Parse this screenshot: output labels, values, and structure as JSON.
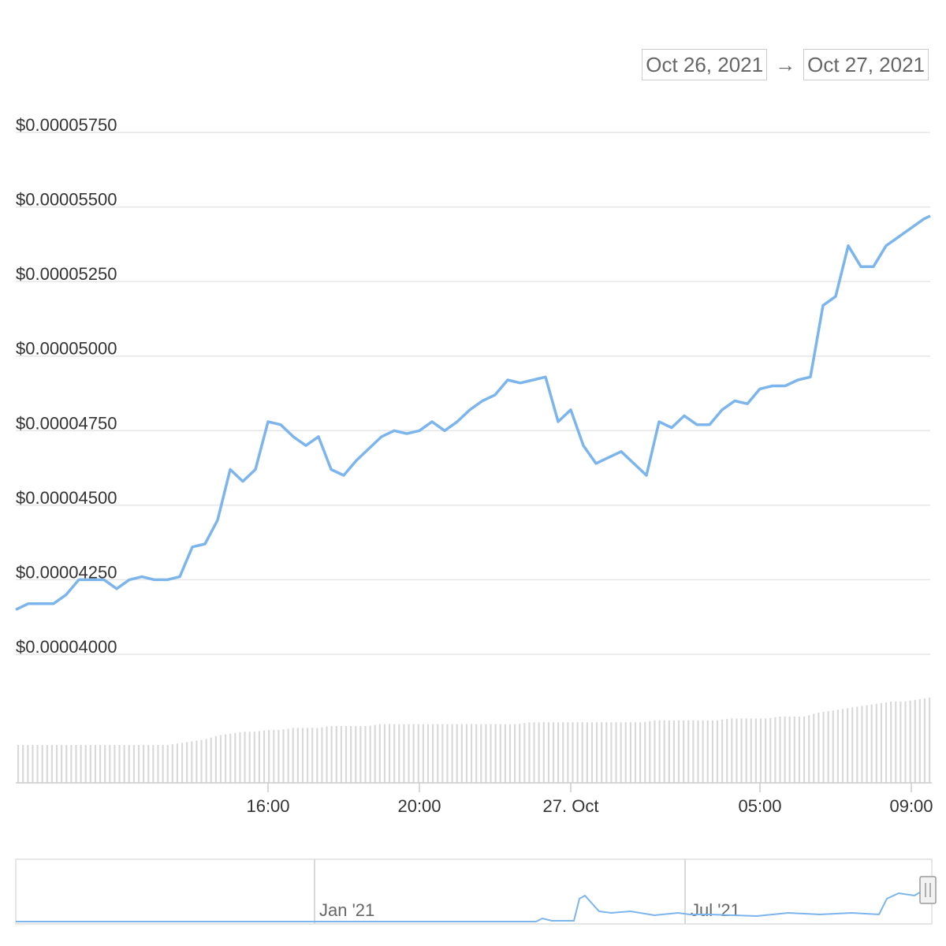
{
  "date_range": {
    "from": "Oct 26, 2021",
    "arrow": "→",
    "to": "Oct 27, 2021"
  },
  "navigator": {
    "labels": [
      "Jan '21",
      "Jul '21"
    ]
  },
  "colors": {
    "line": "#7cb5ec",
    "volume": "#d9d9d9",
    "grid": "#e6e6e6"
  },
  "chart_data": {
    "type": "line",
    "title": "",
    "y_tick_labels": [
      "$0.00004000",
      "$0.00004250",
      "$0.00004500",
      "$0.00004750",
      "$0.00005000",
      "$0.00005250",
      "$0.00005500",
      "$0.00005750"
    ],
    "y_ticks": [
      4e-05,
      4.25e-05,
      4.5e-05,
      4.75e-05,
      5e-05,
      5.25e-05,
      5.5e-05,
      5.75e-05
    ],
    "ylim": [
      4e-05,
      5.75e-05
    ],
    "x_tick_labels": [
      "16:00",
      "20:00",
      "27. Oct",
      "05:00",
      "09:00"
    ],
    "x_ticks": [
      "2021-10-26 16:00",
      "2021-10-26 20:00",
      "2021-10-27 00:00",
      "2021-10-27 05:00",
      "2021-10-27 09:00"
    ],
    "xlim": [
      "2021-10-26 09:20",
      "2021-10-27 09:30"
    ],
    "grid": true,
    "series": [
      {
        "x": [
          "2021-10-26 09:20",
          "2021-10-26 09:40",
          "2021-10-26 10:00",
          "2021-10-26 10:20",
          "2021-10-26 10:40",
          "2021-10-26 11:00",
          "2021-10-26 11:20",
          "2021-10-26 11:40",
          "2021-10-26 12:00",
          "2021-10-26 12:20",
          "2021-10-26 12:40",
          "2021-10-26 13:00",
          "2021-10-26 13:20",
          "2021-10-26 13:40",
          "2021-10-26 14:00",
          "2021-10-26 14:20",
          "2021-10-26 14:40",
          "2021-10-26 15:00",
          "2021-10-26 15:20",
          "2021-10-26 15:40",
          "2021-10-26 16:00",
          "2021-10-26 16:20",
          "2021-10-26 16:40",
          "2021-10-26 17:00",
          "2021-10-26 17:20",
          "2021-10-26 17:40",
          "2021-10-26 18:00",
          "2021-10-26 18:20",
          "2021-10-26 18:40",
          "2021-10-26 19:00",
          "2021-10-26 19:20",
          "2021-10-26 19:40",
          "2021-10-26 20:00",
          "2021-10-26 20:20",
          "2021-10-26 20:40",
          "2021-10-26 21:00",
          "2021-10-26 21:20",
          "2021-10-26 21:40",
          "2021-10-26 22:00",
          "2021-10-26 22:20",
          "2021-10-26 22:40",
          "2021-10-26 23:00",
          "2021-10-26 23:20",
          "2021-10-26 23:40",
          "2021-10-27 00:00",
          "2021-10-27 00:20",
          "2021-10-27 00:40",
          "2021-10-27 01:00",
          "2021-10-27 01:20",
          "2021-10-27 01:40",
          "2021-10-27 02:00",
          "2021-10-27 02:20",
          "2021-10-27 02:40",
          "2021-10-27 03:00",
          "2021-10-27 03:20",
          "2021-10-27 03:40",
          "2021-10-27 04:00",
          "2021-10-27 04:20",
          "2021-10-27 04:40",
          "2021-10-27 05:00",
          "2021-10-27 05:20",
          "2021-10-27 05:40",
          "2021-10-27 06:00",
          "2021-10-27 06:20",
          "2021-10-27 06:40",
          "2021-10-27 07:00",
          "2021-10-27 07:20",
          "2021-10-27 07:40",
          "2021-10-27 08:00",
          "2021-10-27 08:20",
          "2021-10-27 08:40",
          "2021-10-27 09:00",
          "2021-10-27 09:20",
          "2021-10-27 09:30"
        ],
        "y": [
          4.15e-05,
          4.17e-05,
          4.17e-05,
          4.17e-05,
          4.2e-05,
          4.25e-05,
          4.25e-05,
          4.25e-05,
          4.22e-05,
          4.25e-05,
          4.26e-05,
          4.25e-05,
          4.25e-05,
          4.26e-05,
          4.36e-05,
          4.37e-05,
          4.45e-05,
          4.62e-05,
          4.58e-05,
          4.62e-05,
          4.78e-05,
          4.77e-05,
          4.73e-05,
          4.7e-05,
          4.73e-05,
          4.62e-05,
          4.6e-05,
          4.65e-05,
          4.69e-05,
          4.73e-05,
          4.75e-05,
          4.74e-05,
          4.75e-05,
          4.78e-05,
          4.75e-05,
          4.78e-05,
          4.82e-05,
          4.85e-05,
          4.87e-05,
          4.92e-05,
          4.91e-05,
          4.92e-05,
          4.93e-05,
          4.78e-05,
          4.82e-05,
          4.7e-05,
          4.64e-05,
          4.66e-05,
          4.68e-05,
          4.64e-05,
          4.6e-05,
          4.78e-05,
          4.76e-05,
          4.8e-05,
          4.77e-05,
          4.77e-05,
          4.82e-05,
          4.85e-05,
          4.84e-05,
          4.89e-05,
          4.9e-05,
          4.9e-05,
          4.92e-05,
          4.93e-05,
          5.17e-05,
          5.2e-05,
          5.37e-05,
          5.3e-05,
          5.3e-05,
          5.37e-05,
          5.4e-05,
          5.43e-05,
          5.46e-05,
          5.47e-05
        ]
      }
    ],
    "volume": [
      0.2,
      0.2,
      0.2,
      0.2,
      0.2,
      0.2,
      0.2,
      0.2,
      0.2,
      0.2,
      0.2,
      0.2,
      0.2,
      0.21,
      0.22,
      0.23,
      0.25,
      0.26,
      0.27,
      0.27,
      0.28,
      0.28,
      0.29,
      0.29,
      0.29,
      0.3,
      0.3,
      0.3,
      0.3,
      0.31,
      0.31,
      0.31,
      0.31,
      0.31,
      0.31,
      0.31,
      0.31,
      0.31,
      0.31,
      0.31,
      0.31,
      0.32,
      0.32,
      0.32,
      0.32,
      0.32,
      0.32,
      0.32,
      0.32,
      0.32,
      0.32,
      0.33,
      0.33,
      0.33,
      0.33,
      0.33,
      0.33,
      0.34,
      0.34,
      0.34,
      0.34,
      0.35,
      0.35,
      0.35,
      0.37,
      0.38,
      0.39,
      0.4,
      0.41,
      0.42,
      0.43,
      0.43,
      0.44,
      0.45
    ]
  }
}
